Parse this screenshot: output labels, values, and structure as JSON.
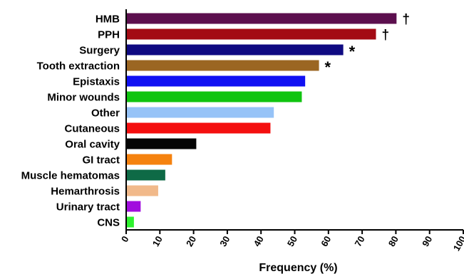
{
  "chart_data": {
    "type": "bar",
    "orientation": "horizontal",
    "title": "",
    "xlabel": "Frequency (%)",
    "ylabel": "",
    "xlim": [
      0,
      100
    ],
    "xticks": [
      "0",
      "10",
      "20",
      "30",
      "40",
      "50",
      "60",
      "70",
      "80",
      "90",
      "100"
    ],
    "grid": false,
    "categories": [
      "HMB",
      "PPH",
      "Surgery",
      "Tooth extraction",
      "Epistaxis",
      "Minor wounds",
      "Other",
      "Cutaneous",
      "Oral cavity",
      "GI tract",
      "Muscle hematomas",
      "Hemarthrosis",
      "Urinary tract",
      "CNS"
    ],
    "values": [
      80.2,
      74.1,
      64.4,
      57.2,
      53.1,
      52.1,
      43.8,
      42.8,
      20.8,
      13.6,
      11.6,
      9.5,
      4.3,
      2.3
    ],
    "colors": [
      "#5c0f4e",
      "#a30b14",
      "#0f0a82",
      "#9b6622",
      "#1010f2",
      "#10c410",
      "#96c3f7",
      "#f40f0f",
      "#050505",
      "#f5820f",
      "#0e6a46",
      "#f1b98a",
      "#a10dde",
      "#2ef22e"
    ],
    "annotations": [
      "†",
      "†",
      "*",
      "*",
      "",
      "",
      "",
      "",
      "",
      "",
      "",
      "",
      "",
      ""
    ]
  }
}
